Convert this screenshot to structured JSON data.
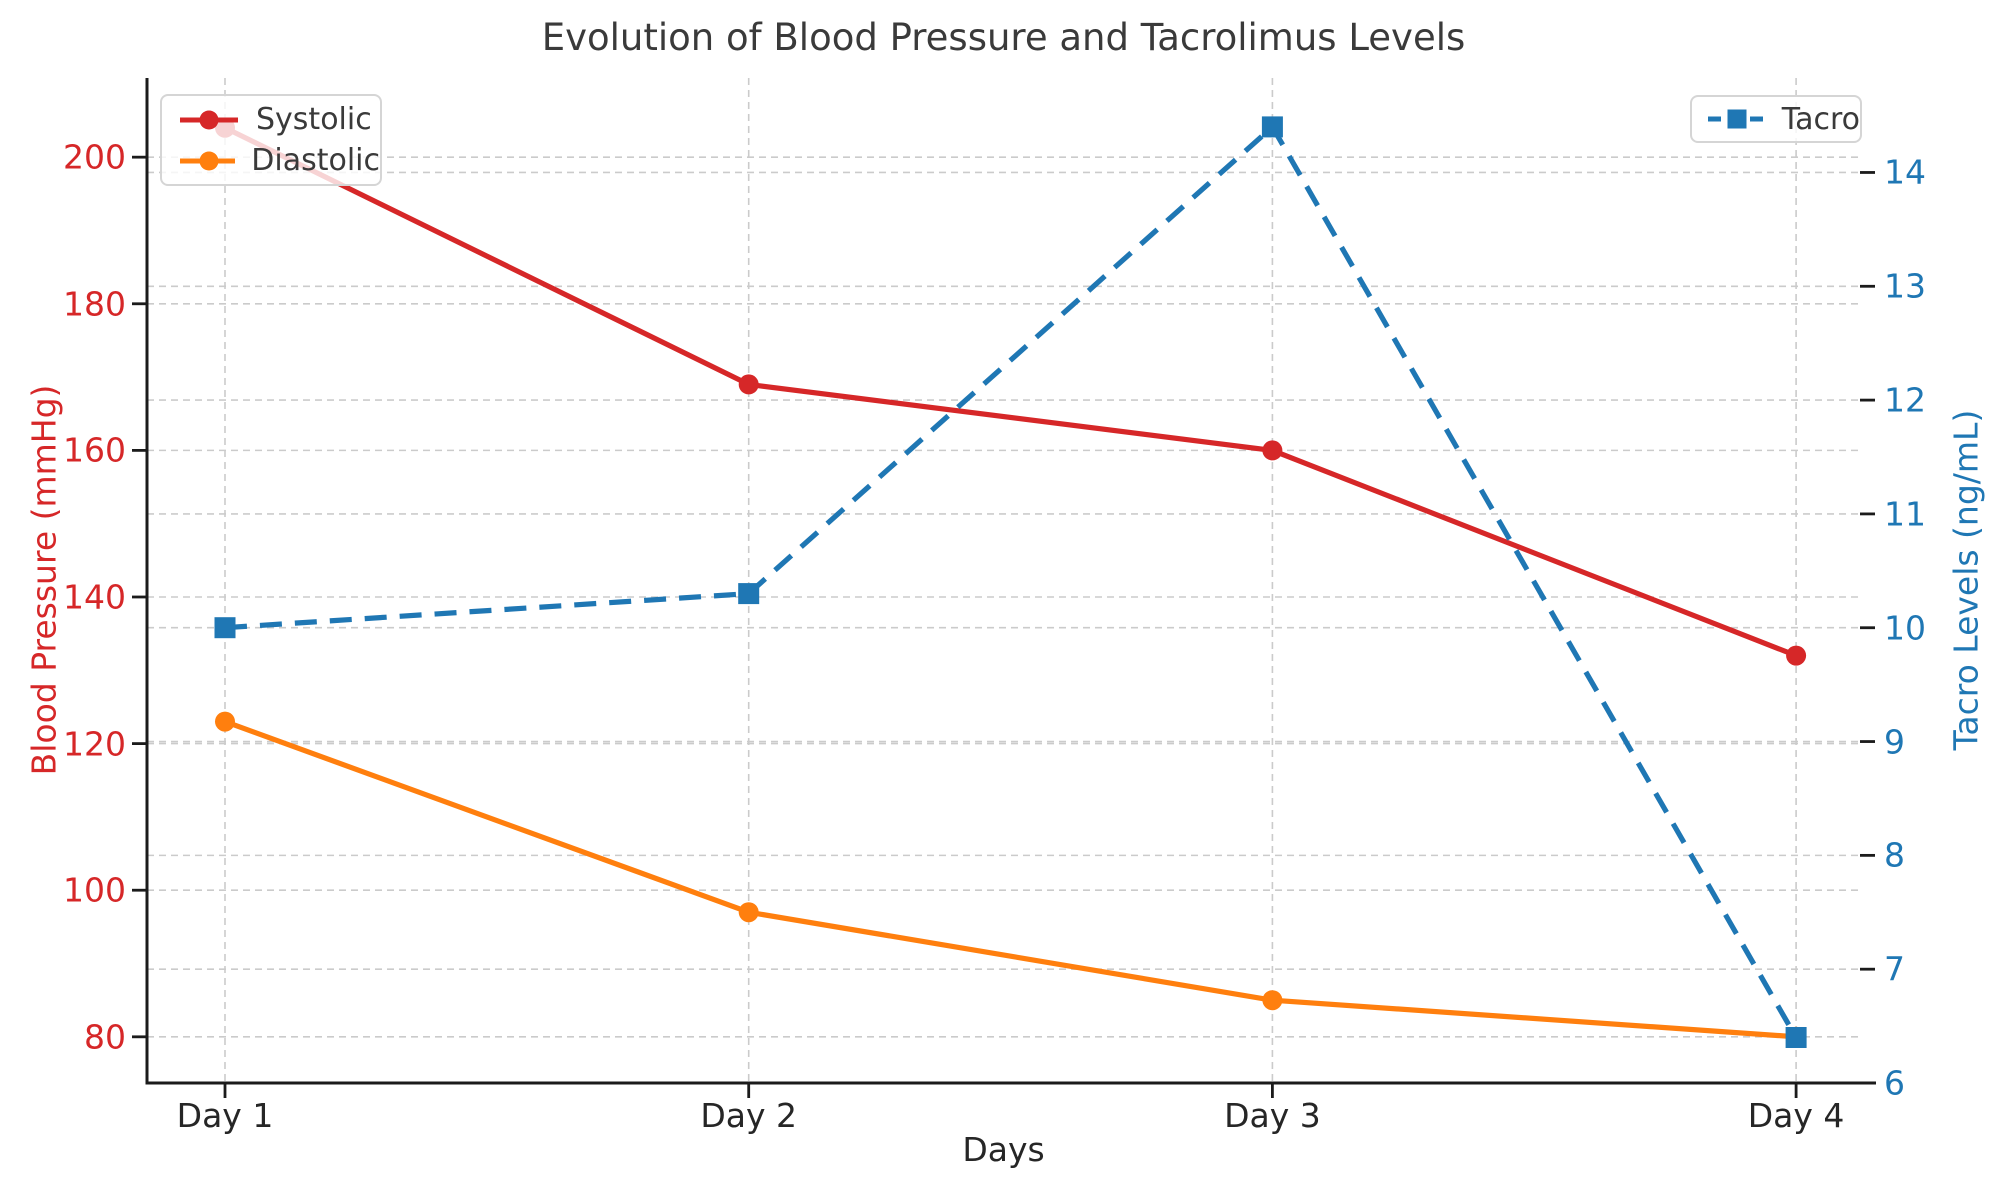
{
  "title": "Evolution of Blood Pressure and Tacrolimus Levels",
  "chart_data": {
    "type": "line",
    "title": "Evolution of Blood Pressure and Tacrolimus Levels",
    "xlabel": "Days",
    "ylabel_left": "Blood Pressure (mmHg)",
    "ylabel_right": "Tacro Levels (ng/mL)",
    "categories": [
      "Day 1",
      "Day 2",
      "Day 3",
      "Day 4"
    ],
    "series": [
      {
        "name": "Systolic",
        "axis": "left",
        "values": [
          204,
          169,
          160,
          132
        ],
        "color": "#d62728",
        "style": "solid",
        "marker": "circle"
      },
      {
        "name": "Diastolic",
        "axis": "left",
        "values": [
          123,
          97,
          85,
          80
        ],
        "color": "#ff7f0e",
        "style": "solid",
        "marker": "circle"
      },
      {
        "name": "Tacro",
        "axis": "right",
        "values": [
          10.0,
          10.3,
          14.4,
          6.4
        ],
        "color": "#1f77b4",
        "style": "dashed",
        "marker": "square"
      }
    ],
    "yticks_left": [
      80,
      100,
      120,
      140,
      160,
      180,
      200
    ],
    "yticks_right": [
      6,
      7,
      8,
      9,
      10,
      11,
      12,
      13,
      14
    ],
    "ylim_left": [
      73.7,
      210.8
    ],
    "ylim_right": [
      6.0,
      14.83
    ],
    "grid": "dashed",
    "legend_left": {
      "entries": [
        "Systolic",
        "Diastolic"
      ],
      "position": "upper left"
    },
    "legend_right": {
      "entries": [
        "Tacro"
      ],
      "position": "upper right"
    }
  },
  "colors": {
    "systolic": "#d62728",
    "diastolic": "#ff7f0e",
    "tacro": "#1f77b4",
    "grid": "#cbcbcb",
    "spine": "#1b1b1b",
    "text": "#3a3a3a"
  }
}
